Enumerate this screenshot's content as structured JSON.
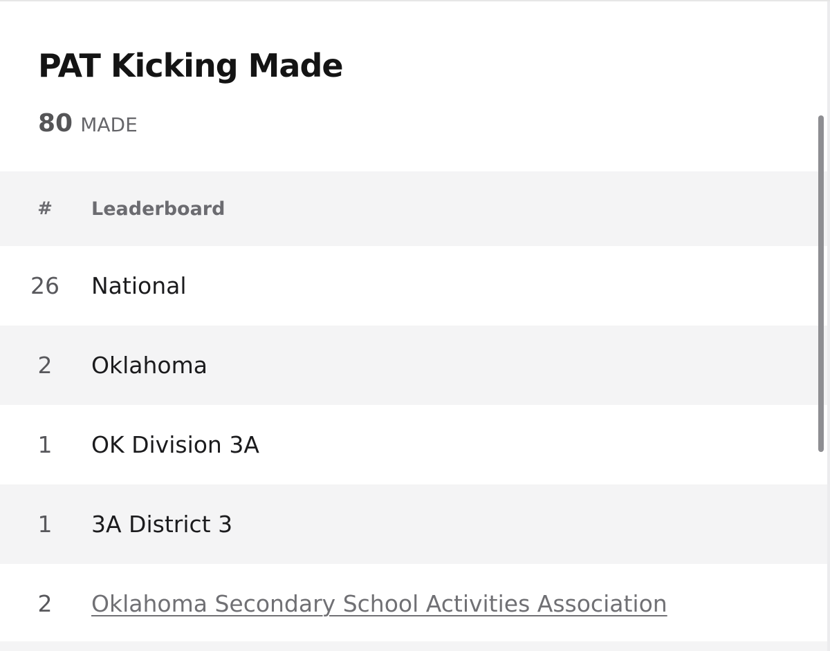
{
  "stat": {
    "title": "PAT Kicking Made",
    "value": "80",
    "unit": "MADE"
  },
  "table": {
    "headers": {
      "rank": "#",
      "name": "Leaderboard"
    },
    "rows": [
      {
        "rank": "26",
        "name": "National",
        "is_link": false
      },
      {
        "rank": "2",
        "name": "Oklahoma",
        "is_link": false
      },
      {
        "rank": "1",
        "name": "OK Division 3A",
        "is_link": false
      },
      {
        "rank": "1",
        "name": "3A District 3",
        "is_link": false
      },
      {
        "rank": "2",
        "name": "Oklahoma Secondary School Activities Association",
        "is_link": true
      }
    ]
  },
  "colors": {
    "background": "#ffffff",
    "stripe": "#f4f4f5",
    "title_text": "#141414",
    "muted_text": "#6b6b70",
    "link_text": "#707074",
    "scrollbar": "#8e8e92"
  }
}
